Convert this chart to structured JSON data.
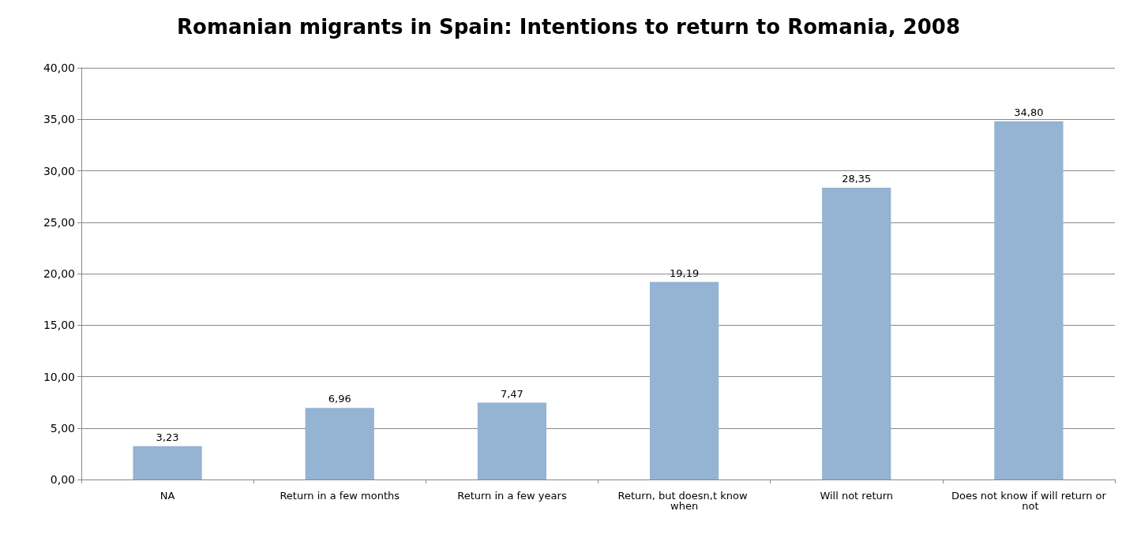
{
  "chart_data": {
    "type": "bar",
    "title": "Romanian migrants in Spain: Intentions to return to Romania, 2008",
    "categories": [
      "NA",
      "Return in a few months",
      "Return in a few years",
      "Return, but doesn,t know when",
      "Will not return",
      "Does not know if will return or not"
    ],
    "values": [
      3.23,
      6.96,
      7.47,
      19.19,
      28.35,
      34.8
    ],
    "value_labels": [
      "3,23",
      "6,96",
      "7,47",
      "19,19",
      "28,35",
      "34,80"
    ],
    "color": "#95b3d3",
    "ylim": [
      0,
      40
    ],
    "yticks": [
      {
        "value": 0,
        "label": "0,00"
      },
      {
        "value": 5,
        "label": "5,00"
      },
      {
        "value": 10,
        "label": "10,00"
      },
      {
        "value": 15,
        "label": "15,00"
      },
      {
        "value": 20,
        "label": "20,00"
      },
      {
        "value": 25,
        "label": "25,00"
      },
      {
        "value": 30,
        "label": "30,00"
      },
      {
        "value": 35,
        "label": "35,00"
      },
      {
        "value": 40,
        "label": "40,00"
      }
    ],
    "grid": "y"
  }
}
